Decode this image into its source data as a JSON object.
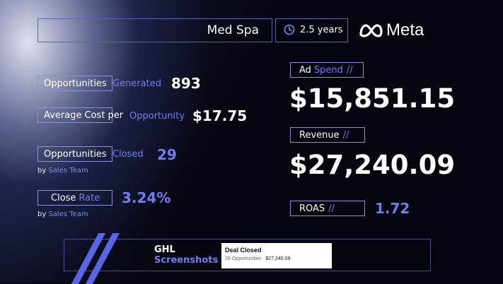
{
  "header": {
    "client": "Med Spa",
    "duration": "2.5 years",
    "platform": "Meta"
  },
  "metrics_left": {
    "opportunities_generated": {
      "label_a": "Opportunities",
      "label_b": "Generated",
      "value": "893"
    },
    "avg_cost": {
      "label_a": "Average Cost per",
      "label_b": "Opportunity",
      "value": "$17.75"
    },
    "opportunities_closed": {
      "label_a": "Opportunities",
      "label_b": "Closed",
      "value": "29",
      "sub_a": "by",
      "sub_b": "Sales Team"
    },
    "close_rate": {
      "label_a": "Close",
      "label_b": "Rate",
      "value": "3.24%",
      "sub_a": "by",
      "sub_b": "Sales Team"
    }
  },
  "metrics_right": {
    "ad_spend": {
      "label_a": "Ad",
      "label_b": "Spend",
      "slash": "//",
      "value": "$15,851.15"
    },
    "revenue": {
      "label_a": "Revenue",
      "slash": "//",
      "value": "$27,240.09"
    },
    "roas": {
      "label_a": "ROAS",
      "slash": "//",
      "value": "1.72"
    }
  },
  "footer": {
    "title_a": "GHL",
    "title_b": "Screenshots",
    "card_title": "Deal Closed",
    "card_count": "29 Opportunities",
    "card_amount": "$27,240.09"
  }
}
